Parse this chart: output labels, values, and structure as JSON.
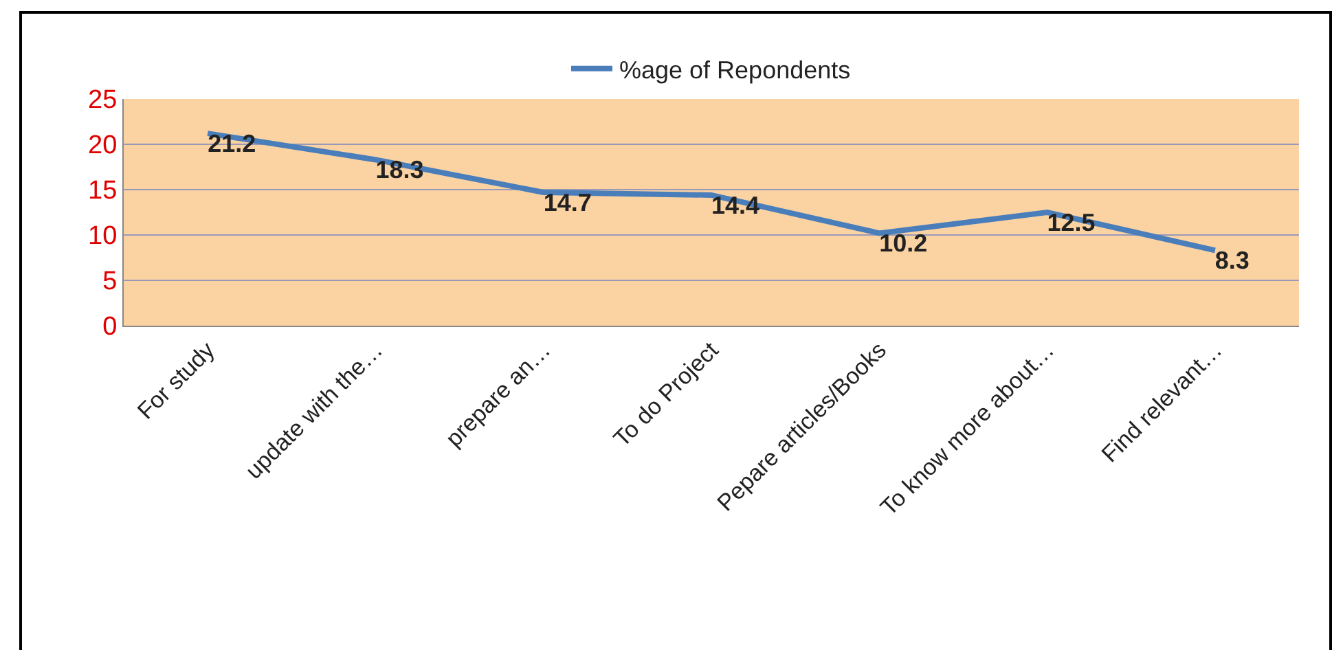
{
  "chart_data": {
    "type": "line",
    "categories": [
      "For study",
      "update with the…",
      "prepare an…",
      "To do Project",
      "Pepare articles/Books",
      "To know more about…",
      "Find relevant…"
    ],
    "series": [
      {
        "name": "%age of Repondents",
        "color": "#4a7ebb",
        "values": [
          21.2,
          18.3,
          14.7,
          14.4,
          10.2,
          12.5,
          8.3
        ]
      }
    ],
    "ylim": [
      0,
      25
    ],
    "yticks": [
      0,
      5,
      10,
      15,
      20,
      25
    ],
    "grid": "y",
    "legend": "top",
    "marker": "none",
    "line_style": "solid",
    "data_labels": true
  }
}
